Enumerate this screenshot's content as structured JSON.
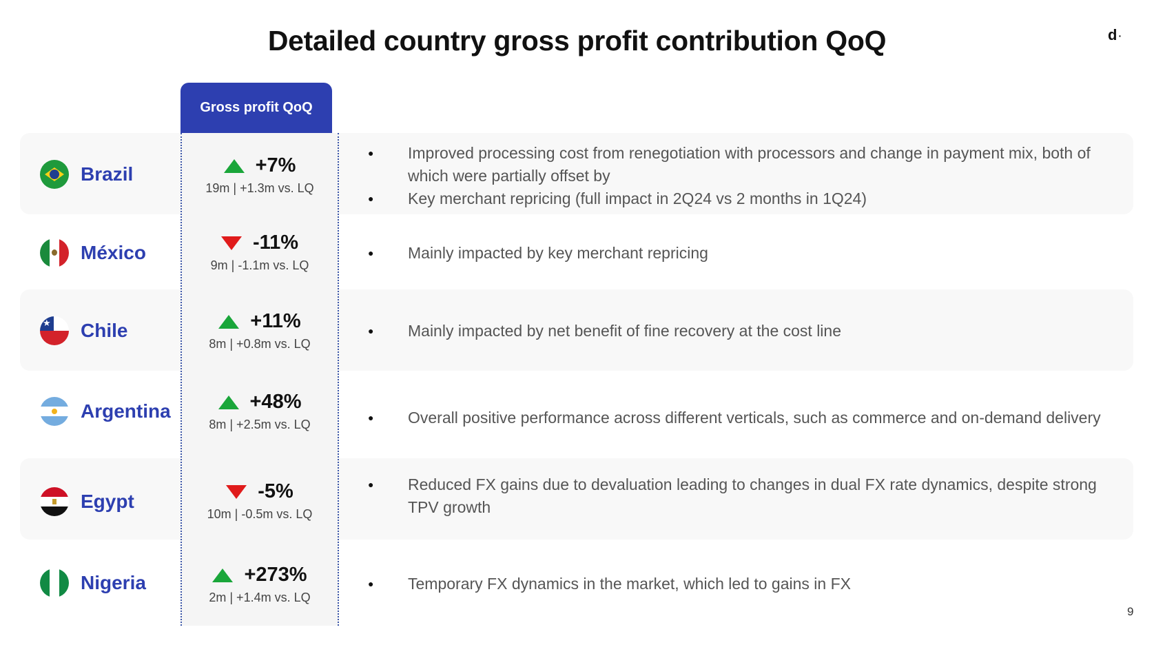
{
  "title": "Detailed country gross profit contribution QoQ",
  "logo_text": "d",
  "page_number": "9",
  "column_header": "Gross profit QoQ",
  "colors": {
    "accent": "#2d3fb0",
    "up": "#1aa63a",
    "down": "#e01b1b"
  },
  "rows": [
    {
      "country": "Brazil",
      "flag_icon": "brazil-flag-icon",
      "direction": "up",
      "pct": "+7%",
      "sub": "19m | +1.3m vs. LQ",
      "bullets": [
        "Improved processing cost from renegotiation with processors and change in payment mix, both of which were partially offset by",
        "Key merchant repricing (full impact in 2Q24 vs 2 months  in 1Q24)"
      ]
    },
    {
      "country": "México",
      "flag_icon": "mexico-flag-icon",
      "direction": "down",
      "pct": "-11%",
      "sub": "9m | -1.1m vs. LQ",
      "bullets": [
        "Mainly impacted by key merchant repricing"
      ]
    },
    {
      "country": "Chile",
      "flag_icon": "chile-flag-icon",
      "direction": "up",
      "pct": "+11%",
      "sub": "8m | +0.8m vs. LQ",
      "bullets": [
        "Mainly impacted by net benefit of fine recovery at the cost line"
      ]
    },
    {
      "country": "Argentina",
      "flag_icon": "argentina-flag-icon",
      "direction": "up",
      "pct": "+48%",
      "sub": "8m | +2.5m vs. LQ",
      "bullets": [
        "Overall positive performance across different verticals, such as commerce and on-demand delivery"
      ]
    },
    {
      "country": "Egypt",
      "flag_icon": "egypt-flag-icon",
      "direction": "down",
      "pct": "-5%",
      "sub": "10m | -0.5m vs. LQ",
      "bullets": [
        "Reduced FX gains due to devaluation leading to changes in dual FX rate dynamics, despite strong TPV growth"
      ]
    },
    {
      "country": "Nigeria",
      "flag_icon": "nigeria-flag-icon",
      "direction": "up",
      "pct": "+273%",
      "sub": "2m | +1.4m vs. LQ",
      "bullets": [
        "Temporary FX dynamics in the market, which led to gains in FX"
      ]
    }
  ]
}
